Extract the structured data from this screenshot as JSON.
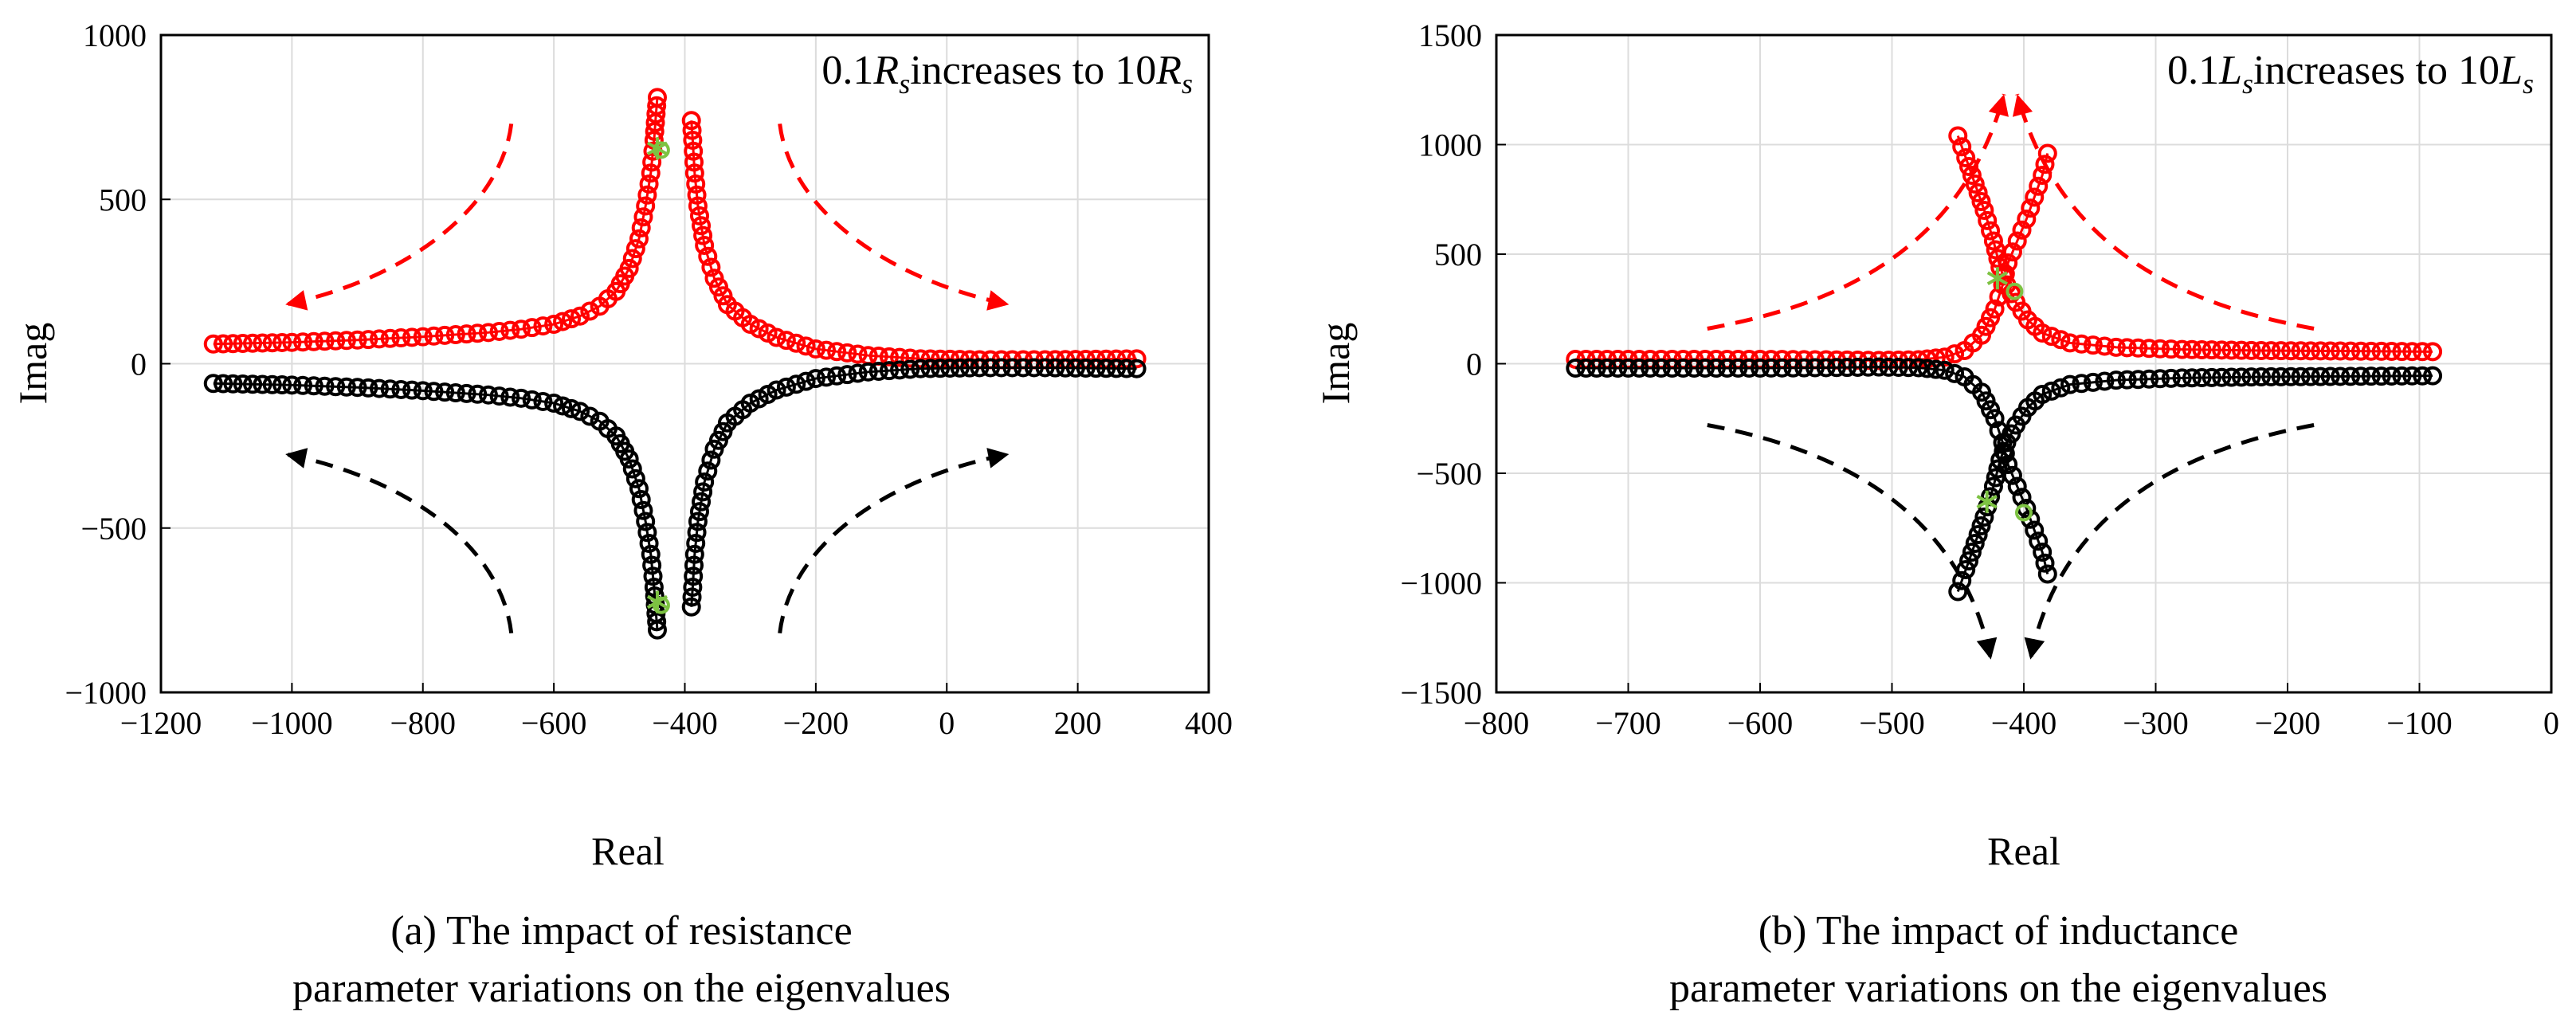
{
  "chart_data": [
    {
      "type": "scatter",
      "caption_lines": [
        "(a) The impact of resistance",
        "parameter variations on the eigenvalues"
      ],
      "xlabel": "Real",
      "ylabel": "Imag",
      "xlim": [
        -1200,
        400
      ],
      "ylim": [
        -1000,
        1000
      ],
      "xticks": [
        -1200,
        -1000,
        -800,
        -600,
        -400,
        -200,
        0,
        200,
        400
      ],
      "yticks": [
        -1000,
        -500,
        0,
        500,
        1000
      ],
      "grid": true,
      "annotation": {
        "prefix": "0.1",
        "sym1": "R",
        "sub1": "s",
        "middle": "increases to 10",
        "sym2": "R",
        "sub2": "s"
      },
      "series": [
        {
          "color": "#ff0000",
          "marker": "circle",
          "points": [
            [
              -1120,
              60
            ],
            [
              -1000,
              65
            ],
            [
              -900,
              72
            ],
            [
              -800,
              82
            ],
            [
              -700,
              95
            ],
            [
              -650,
              105
            ],
            [
              -600,
              120
            ],
            [
              -560,
              145
            ],
            [
              -530,
              175
            ],
            [
              -505,
              220
            ],
            [
              -485,
              290
            ],
            [
              -470,
              380
            ],
            [
              -460,
              480
            ],
            [
              -452,
              580
            ],
            [
              -447,
              680
            ],
            [
              -444,
              760
            ],
            [
              -442,
              810
            ]
          ]
        },
        {
          "color": "#ff0000",
          "marker": "circle",
          "points": [
            [
              -390,
              740
            ],
            [
              -388,
              680
            ],
            [
              -385,
              580
            ],
            [
              -380,
              480
            ],
            [
              -370,
              360
            ],
            [
              -355,
              260
            ],
            [
              -335,
              180
            ],
            [
              -300,
              120
            ],
            [
              -260,
              80
            ],
            [
              -200,
              45
            ],
            [
              -120,
              25
            ],
            [
              -40,
              15
            ],
            [
              50,
              12
            ],
            [
              150,
              12
            ],
            [
              290,
              15
            ]
          ]
        },
        {
          "color": "#000000",
          "marker": "circle",
          "points": [
            [
              -1120,
              -60
            ],
            [
              -1000,
              -65
            ],
            [
              -900,
              -72
            ],
            [
              -800,
              -82
            ],
            [
              -700,
              -95
            ],
            [
              -650,
              -105
            ],
            [
              -600,
              -120
            ],
            [
              -560,
              -145
            ],
            [
              -530,
              -175
            ],
            [
              -505,
              -220
            ],
            [
              -485,
              -290
            ],
            [
              -470,
              -380
            ],
            [
              -460,
              -480
            ],
            [
              -452,
              -580
            ],
            [
              -447,
              -680
            ],
            [
              -444,
              -760
            ],
            [
              -442,
              -810
            ]
          ]
        },
        {
          "color": "#000000",
          "marker": "circle",
          "points": [
            [
              -390,
              -740
            ],
            [
              -388,
              -680
            ],
            [
              -385,
              -580
            ],
            [
              -380,
              -480
            ],
            [
              -370,
              -360
            ],
            [
              -355,
              -260
            ],
            [
              -335,
              -180
            ],
            [
              -300,
              -120
            ],
            [
              -260,
              -80
            ],
            [
              -200,
              -45
            ],
            [
              -120,
              -25
            ],
            [
              -40,
              -15
            ],
            [
              50,
              -12
            ],
            [
              150,
              -12
            ],
            [
              290,
              -15
            ]
          ]
        }
      ],
      "markers": [
        {
          "color": "#7dc242",
          "symbol": "asterisk",
          "x": -442,
          "y": 655
        },
        {
          "color": "#7dc242",
          "symbol": "circle",
          "x": -436,
          "y": 650
        },
        {
          "color": "#7dc242",
          "symbol": "asterisk",
          "x": -442,
          "y": -725
        },
        {
          "color": "#7dc242",
          "symbol": "circle",
          "x": -436,
          "y": -735
        }
      ],
      "arrows": [
        {
          "color": "#ff0000",
          "points": [
            [
              -665,
              730
            ],
            [
              -680,
              480
            ],
            [
              -820,
              260
            ],
            [
              -1010,
              180
            ]
          ]
        },
        {
          "color": "#ff0000",
          "points": [
            [
              -255,
              730
            ],
            [
              -240,
              480
            ],
            [
              -100,
              260
            ],
            [
              95,
              180
            ]
          ]
        },
        {
          "color": "#000000",
          "points": [
            [
              -665,
              -820
            ],
            [
              -680,
              -560
            ],
            [
              -820,
              -350
            ],
            [
              -1010,
              -275
            ]
          ]
        },
        {
          "color": "#000000",
          "points": [
            [
              -255,
              -820
            ],
            [
              -240,
              -560
            ],
            [
              -100,
              -350
            ],
            [
              95,
              -275
            ]
          ]
        }
      ]
    },
    {
      "type": "scatter",
      "caption_lines": [
        "(b) The impact of inductance",
        "parameter variations on the eigenvalues"
      ],
      "xlabel": "Real",
      "ylabel": "Imag",
      "xlim": [
        -800,
        0
      ],
      "ylim": [
        -1500,
        1500
      ],
      "xticks": [
        -800,
        -700,
        -600,
        -500,
        -400,
        -300,
        -200,
        -100,
        0
      ],
      "yticks": [
        -1500,
        -1000,
        -500,
        0,
        500,
        1000,
        1500
      ],
      "grid": true,
      "annotation": {
        "prefix": "0.1",
        "sym1": "L",
        "sub1": "s",
        "middle": "increases to 10",
        "sym2": "L",
        "sub2": "s"
      },
      "series": [
        {
          "color": "#ff0000",
          "marker": "circle",
          "points": [
            [
              -740,
              20
            ],
            [
              -700,
              20
            ],
            [
              -650,
              20
            ],
            [
              -600,
              20
            ],
            [
              -550,
              18
            ],
            [
              -510,
              15
            ],
            [
              -480,
              18
            ],
            [
              -460,
              30
            ],
            [
              -445,
              60
            ],
            [
              -432,
              130
            ],
            [
              -422,
              250
            ],
            [
              -416,
              360
            ],
            [
              -412,
              460
            ],
            [
              -405,
              560
            ],
            [
              -398,
              660
            ],
            [
              -392,
              760
            ],
            [
              -386,
              860
            ],
            [
              -382,
              960
            ]
          ]
        },
        {
          "color": "#ff0000",
          "marker": "circle",
          "points": [
            [
              -450,
              1040
            ],
            [
              -444,
              940
            ],
            [
              -437,
              820
            ],
            [
              -430,
              700
            ],
            [
              -423,
              560
            ],
            [
              -418,
              440
            ],
            [
              -413,
              360
            ],
            [
              -406,
              280
            ],
            [
              -397,
              200
            ],
            [
              -386,
              140
            ],
            [
              -365,
              95
            ],
            [
              -330,
              75
            ],
            [
              -280,
              65
            ],
            [
              -220,
              60
            ],
            [
              -160,
              58
            ],
            [
              -90,
              55
            ]
          ]
        },
        {
          "color": "#000000",
          "marker": "circle",
          "points": [
            [
              -740,
              -20
            ],
            [
              -700,
              -20
            ],
            [
              -650,
              -20
            ],
            [
              -600,
              -20
            ],
            [
              -550,
              -18
            ],
            [
              -510,
              -15
            ],
            [
              -480,
              -18
            ],
            [
              -460,
              -30
            ],
            [
              -445,
              -60
            ],
            [
              -432,
              -130
            ],
            [
              -422,
              -250
            ],
            [
              -416,
              -360
            ],
            [
              -412,
              -460
            ],
            [
              -405,
              -560
            ],
            [
              -398,
              -660
            ],
            [
              -392,
              -760
            ],
            [
              -386,
              -860
            ],
            [
              -382,
              -960
            ]
          ]
        },
        {
          "color": "#000000",
          "marker": "circle",
          "points": [
            [
              -450,
              -1040
            ],
            [
              -444,
              -940
            ],
            [
              -437,
              -820
            ],
            [
              -430,
              -700
            ],
            [
              -423,
              -560
            ],
            [
              -418,
              -440
            ],
            [
              -413,
              -360
            ],
            [
              -406,
              -280
            ],
            [
              -397,
              -200
            ],
            [
              -386,
              -140
            ],
            [
              -365,
              -95
            ],
            [
              -330,
              -75
            ],
            [
              -280,
              -65
            ],
            [
              -220,
              -60
            ],
            [
              -160,
              -58
            ],
            [
              -90,
              -55
            ]
          ]
        }
      ],
      "markers": [
        {
          "color": "#7dc242",
          "symbol": "asterisk",
          "x": -420,
          "y": 390
        },
        {
          "color": "#7dc242",
          "symbol": "circle",
          "x": -407,
          "y": 330
        },
        {
          "color": "#7dc242",
          "symbol": "asterisk",
          "x": -428,
          "y": -630
        },
        {
          "color": "#7dc242",
          "symbol": "circle",
          "x": -400,
          "y": -680
        }
      ],
      "arrows": [
        {
          "color": "#ff0000",
          "points": [
            [
              -640,
              160
            ],
            [
              -560,
              250
            ],
            [
              -450,
              450
            ],
            [
              -415,
              1230
            ]
          ]
        },
        {
          "color": "#ff0000",
          "points": [
            [
              -180,
              160
            ],
            [
              -260,
              250
            ],
            [
              -370,
              450
            ],
            [
              -405,
              1230
            ]
          ]
        },
        {
          "color": "#000000",
          "points": [
            [
              -640,
              -280
            ],
            [
              -560,
              -370
            ],
            [
              -450,
              -600
            ],
            [
              -425,
              -1350
            ]
          ]
        },
        {
          "color": "#000000",
          "points": [
            [
              -180,
              -280
            ],
            [
              -260,
              -370
            ],
            [
              -370,
              -600
            ],
            [
              -395,
              -1350
            ]
          ]
        }
      ]
    }
  ]
}
